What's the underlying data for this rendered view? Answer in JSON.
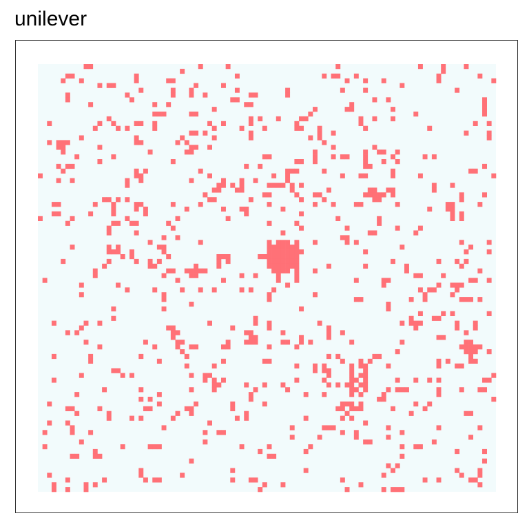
{
  "title": "unilever",
  "chart_data": {
    "type": "heatmap",
    "title": "unilever",
    "xlabel": "",
    "ylabel": "",
    "grid": "off",
    "legend": "none",
    "rows": 90,
    "cols": 100,
    "colors": {
      "background": "#f2fbfc",
      "filled": "#ff7177",
      "panel_border": "#333333"
    },
    "layers": [
      {
        "kind": "cluster",
        "row": 40,
        "col": 53,
        "radius": 3.4,
        "density": 0.95
      },
      {
        "kind": "cluster",
        "row": 31,
        "col": 91,
        "radius": 1.8,
        "density": 0.85
      },
      {
        "kind": "cluster",
        "row": 67,
        "col": 69,
        "radius": 1.4,
        "density": 0.8
      },
      {
        "kind": "cluster",
        "row": 60,
        "col": 94,
        "radius": 1.4,
        "density": 0.8
      },
      {
        "kind": "cluster",
        "row": 27,
        "col": 73,
        "radius": 1.2,
        "density": 0.75
      },
      {
        "kind": "cluster",
        "row": 43,
        "col": 34,
        "radius": 1,
        "density": 0.9
      },
      {
        "kind": "cluster",
        "row": 16,
        "col": 5,
        "radius": 1.1,
        "density": 0.7
      },
      {
        "kind": "cluster",
        "row": 57,
        "col": 46,
        "radius": 0.9,
        "density": 0.8
      },
      {
        "kind": "cluster",
        "row": 72,
        "col": 67,
        "radius": 1.1,
        "density": 0.6
      },
      {
        "kind": "ring",
        "row": 46,
        "col": 48,
        "radius": 22,
        "width": 3,
        "density": 0.16
      },
      {
        "kind": "ring",
        "row": 46,
        "col": 48,
        "radius": 34,
        "width": 4,
        "density": 0.07
      },
      {
        "kind": "scatter",
        "density": 0.055
      }
    ],
    "seed": 20231
  }
}
